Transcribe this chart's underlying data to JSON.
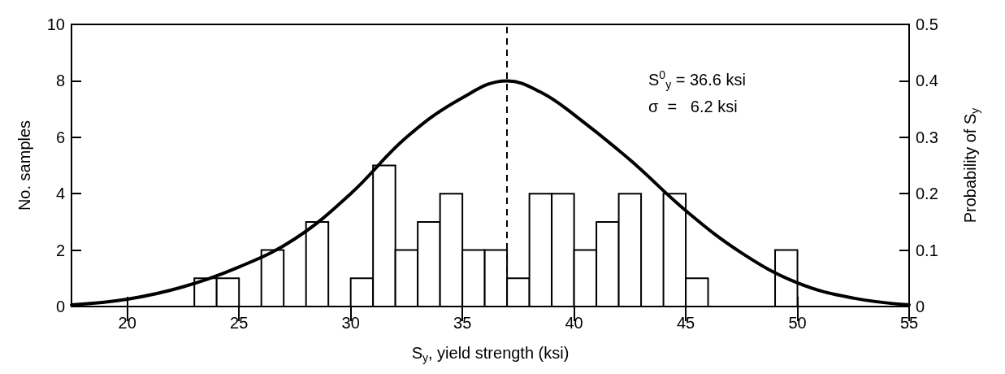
{
  "chart_data": {
    "type": "histogram",
    "xlabel": "S$_{y}$, yield strength (ksi)",
    "ylabel": "No. samples",
    "y2label": "Probability of S$_{y}$",
    "bins": [
      23,
      24,
      25,
      26,
      27,
      28,
      29,
      30,
      31,
      32,
      33,
      34,
      35,
      36,
      37,
      38,
      39,
      40,
      41,
      42,
      43,
      44,
      45,
      46,
      47,
      48,
      49,
      50
    ],
    "values": [
      1,
      1,
      0,
      2,
      0,
      3,
      0,
      1,
      5,
      2,
      3,
      4,
      2,
      2,
      1,
      4,
      4,
      2,
      3,
      4,
      0,
      4,
      1,
      0,
      0,
      0,
      2
    ],
    "color": "#ffffff",
    "series": [
      {
        "type": "line",
        "axis": "y2",
        "color": "#000000",
        "x": [
          17.5,
          20,
          22.5,
          25,
          27.5,
          30,
          32.5,
          35,
          37,
          38.5,
          40,
          42.5,
          45,
          47.5,
          50,
          52.5,
          55
        ],
        "values": [
          0.003,
          0.013,
          0.035,
          0.07,
          0.12,
          0.2,
          0.3,
          0.37,
          0.4,
          0.38,
          0.34,
          0.26,
          0.17,
          0.095,
          0.042,
          0.015,
          0.003
        ]
      }
    ],
    "xlim": [
      17.5,
      55
    ],
    "xticks": [
      20,
      25,
      30,
      35,
      40,
      45,
      50,
      55
    ],
    "ylim": [
      0,
      10
    ],
    "yticks": [
      0,
      2,
      4,
      6,
      8,
      10
    ],
    "y2lim": [
      0,
      0.5
    ],
    "y2ticks": [
      0,
      0.1,
      0.2,
      0.3,
      0.4,
      0.5
    ],
    "ref_lines": [
      {
        "axis": "x",
        "value": 37,
        "line_style": "dashed",
        "color": "#000000"
      }
    ],
    "annotations": [
      "S$^{0}$$_{y}$ = 36.6 ksi",
      "σ  =   6.2 ksi"
    ],
    "grid": false,
    "marker": "none"
  }
}
